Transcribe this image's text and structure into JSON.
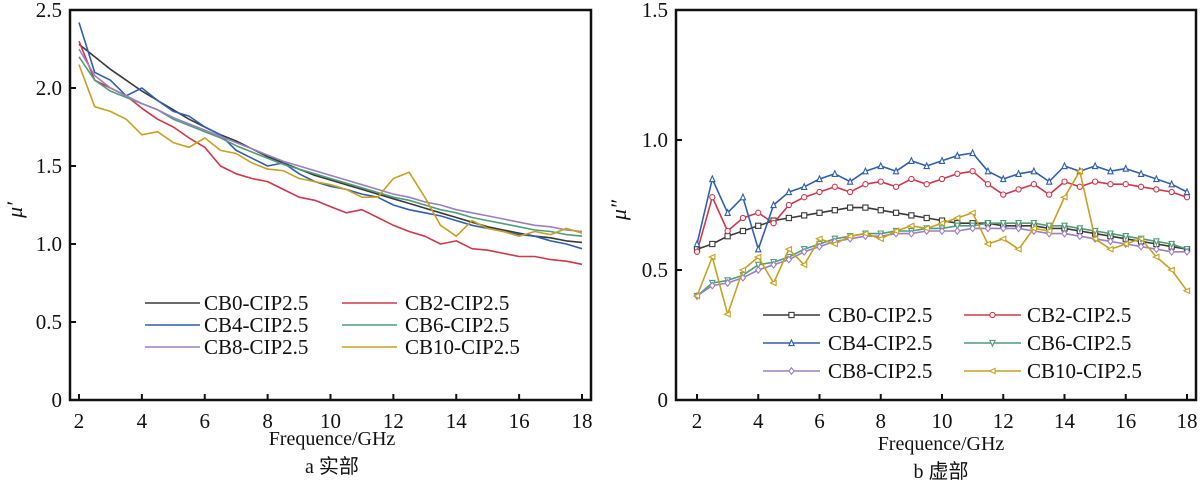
{
  "chart_data": [
    {
      "type": "line",
      "caption": "a  实部",
      "xlabel": "Frequence/GHz",
      "ylabel": "μ′",
      "xlim": [
        2,
        18
      ],
      "ylim": [
        0,
        2.5
      ],
      "xticks": [
        "2",
        "4",
        "6",
        "8",
        "10",
        "12",
        "14",
        "16",
        "18"
      ],
      "yticks": [
        "0",
        "0.5",
        "1.0",
        "1.5",
        "2.0",
        "2.5"
      ],
      "grid": false,
      "legend_position": "bottom-center",
      "markers": false,
      "x": [
        2,
        2.5,
        3,
        3.5,
        4,
        4.5,
        5,
        5.5,
        6,
        6.5,
        7,
        7.5,
        8,
        8.5,
        9,
        9.5,
        10,
        10.5,
        11,
        11.5,
        12,
        12.5,
        13,
        13.5,
        14,
        14.5,
        15,
        15.5,
        16,
        16.5,
        17,
        17.5,
        18
      ],
      "series": [
        {
          "name": "CB0-CIP2.5",
          "color": "#3a3a3a",
          "values": [
            2.28,
            2.2,
            2.12,
            2.05,
            1.98,
            1.92,
            1.86,
            1.8,
            1.75,
            1.7,
            1.66,
            1.61,
            1.56,
            1.52,
            1.48,
            1.44,
            1.41,
            1.38,
            1.35,
            1.32,
            1.29,
            1.26,
            1.23,
            1.2,
            1.17,
            1.14,
            1.11,
            1.09,
            1.07,
            1.05,
            1.04,
            1.02,
            1.01
          ]
        },
        {
          "name": "CB2-CIP2.5",
          "color": "#d0374b",
          "values": [
            2.3,
            2.05,
            2.0,
            1.95,
            1.87,
            1.8,
            1.75,
            1.68,
            1.62,
            1.5,
            1.45,
            1.42,
            1.4,
            1.35,
            1.3,
            1.28,
            1.24,
            1.2,
            1.22,
            1.17,
            1.12,
            1.08,
            1.05,
            1.0,
            1.02,
            0.97,
            0.96,
            0.94,
            0.92,
            0.92,
            0.9,
            0.89,
            0.87
          ]
        },
        {
          "name": "CB4-CIP2.5",
          "color": "#2f5faf",
          "values": [
            2.42,
            2.1,
            2.05,
            1.95,
            2.0,
            1.92,
            1.85,
            1.82,
            1.75,
            1.7,
            1.6,
            1.55,
            1.5,
            1.52,
            1.45,
            1.4,
            1.37,
            1.35,
            1.32,
            1.3,
            1.25,
            1.22,
            1.2,
            1.18,
            1.15,
            1.12,
            1.1,
            1.08,
            1.06,
            1.05,
            1.02,
            1.0,
            0.97
          ]
        },
        {
          "name": "CB6-CIP2.5",
          "color": "#4f9e78",
          "values": [
            2.2,
            2.05,
            1.98,
            1.94,
            1.9,
            1.86,
            1.8,
            1.76,
            1.72,
            1.68,
            1.63,
            1.59,
            1.55,
            1.51,
            1.48,
            1.45,
            1.42,
            1.39,
            1.36,
            1.33,
            1.3,
            1.28,
            1.25,
            1.22,
            1.2,
            1.17,
            1.15,
            1.13,
            1.11,
            1.09,
            1.08,
            1.06,
            1.05
          ]
        },
        {
          "name": "CB8-CIP2.5",
          "color": "#9b7fc4",
          "values": [
            2.25,
            2.08,
            2.0,
            1.95,
            1.9,
            1.86,
            1.81,
            1.77,
            1.73,
            1.69,
            1.65,
            1.61,
            1.57,
            1.53,
            1.5,
            1.47,
            1.44,
            1.41,
            1.38,
            1.35,
            1.32,
            1.3,
            1.27,
            1.25,
            1.22,
            1.2,
            1.18,
            1.16,
            1.14,
            1.12,
            1.11,
            1.09,
            1.08
          ]
        },
        {
          "name": "CB10-CIP2.5",
          "color": "#c9a021",
          "values": [
            2.15,
            1.88,
            1.85,
            1.8,
            1.7,
            1.72,
            1.65,
            1.62,
            1.68,
            1.6,
            1.58,
            1.52,
            1.48,
            1.47,
            1.42,
            1.4,
            1.38,
            1.35,
            1.3,
            1.3,
            1.42,
            1.46,
            1.3,
            1.12,
            1.05,
            1.15,
            1.1,
            1.08,
            1.05,
            1.08,
            1.06,
            1.1,
            1.07
          ]
        }
      ]
    },
    {
      "type": "line",
      "caption": "b  虚部",
      "xlabel": "Frequence/GHz",
      "ylabel": "μ″",
      "xlim": [
        2,
        18
      ],
      "ylim": [
        0,
        1.5
      ],
      "xticks": [
        "2",
        "4",
        "6",
        "8",
        "10",
        "12",
        "14",
        "16",
        "18"
      ],
      "yticks": [
        "0",
        "0.5",
        "1.0",
        "1.5"
      ],
      "grid": false,
      "legend_position": "bottom-center",
      "markers": true,
      "x": [
        2,
        2.5,
        3,
        3.5,
        4,
        4.5,
        5,
        5.5,
        6,
        6.5,
        7,
        7.5,
        8,
        8.5,
        9,
        9.5,
        10,
        10.5,
        11,
        11.5,
        12,
        12.5,
        13,
        13.5,
        14,
        14.5,
        15,
        15.5,
        16,
        16.5,
        17,
        17.5,
        18
      ],
      "series": [
        {
          "name": "CB0-CIP2.5",
          "color": "#3a3a3a",
          "marker": "square",
          "values": [
            0.58,
            0.6,
            0.63,
            0.65,
            0.67,
            0.69,
            0.7,
            0.71,
            0.72,
            0.73,
            0.74,
            0.74,
            0.73,
            0.72,
            0.71,
            0.7,
            0.69,
            0.68,
            0.68,
            0.68,
            0.67,
            0.67,
            0.67,
            0.66,
            0.66,
            0.65,
            0.64,
            0.63,
            0.62,
            0.61,
            0.6,
            0.59,
            0.58
          ]
        },
        {
          "name": "CB2-CIP2.5",
          "color": "#d0374b",
          "marker": "circle",
          "values": [
            0.57,
            0.78,
            0.65,
            0.7,
            0.72,
            0.68,
            0.75,
            0.78,
            0.8,
            0.82,
            0.8,
            0.83,
            0.84,
            0.82,
            0.85,
            0.83,
            0.85,
            0.87,
            0.88,
            0.83,
            0.79,
            0.81,
            0.83,
            0.79,
            0.84,
            0.82,
            0.84,
            0.83,
            0.83,
            0.82,
            0.81,
            0.8,
            0.78
          ]
        },
        {
          "name": "CB4-CIP2.5",
          "color": "#2f5faf",
          "marker": "triangle-up",
          "values": [
            0.6,
            0.85,
            0.72,
            0.78,
            0.58,
            0.75,
            0.8,
            0.82,
            0.85,
            0.87,
            0.84,
            0.88,
            0.9,
            0.88,
            0.92,
            0.9,
            0.92,
            0.94,
            0.95,
            0.88,
            0.85,
            0.87,
            0.88,
            0.84,
            0.9,
            0.88,
            0.9,
            0.88,
            0.89,
            0.87,
            0.85,
            0.83,
            0.8
          ]
        },
        {
          "name": "CB6-CIP2.5",
          "color": "#4f9e78",
          "marker": "triangle-down",
          "values": [
            0.4,
            0.45,
            0.46,
            0.48,
            0.52,
            0.53,
            0.55,
            0.58,
            0.6,
            0.62,
            0.63,
            0.64,
            0.64,
            0.65,
            0.65,
            0.66,
            0.66,
            0.67,
            0.67,
            0.68,
            0.68,
            0.68,
            0.68,
            0.67,
            0.67,
            0.66,
            0.65,
            0.64,
            0.63,
            0.62,
            0.61,
            0.6,
            0.58
          ]
        },
        {
          "name": "CB8-CIP2.5",
          "color": "#9b7fc4",
          "marker": "diamond",
          "values": [
            0.4,
            0.44,
            0.45,
            0.47,
            0.5,
            0.52,
            0.54,
            0.57,
            0.59,
            0.61,
            0.62,
            0.63,
            0.63,
            0.64,
            0.64,
            0.65,
            0.65,
            0.65,
            0.66,
            0.66,
            0.66,
            0.66,
            0.65,
            0.64,
            0.64,
            0.63,
            0.62,
            0.61,
            0.6,
            0.59,
            0.58,
            0.57,
            0.57
          ]
        },
        {
          "name": "CB10-CIP2.5",
          "color": "#c9a021",
          "marker": "triangle-left",
          "values": [
            0.4,
            0.55,
            0.33,
            0.5,
            0.55,
            0.45,
            0.58,
            0.52,
            0.62,
            0.6,
            0.63,
            0.64,
            0.62,
            0.65,
            0.67,
            0.66,
            0.68,
            0.7,
            0.72,
            0.6,
            0.62,
            0.58,
            0.66,
            0.65,
            0.78,
            0.88,
            0.62,
            0.58,
            0.6,
            0.62,
            0.55,
            0.5,
            0.42
          ]
        }
      ]
    }
  ]
}
